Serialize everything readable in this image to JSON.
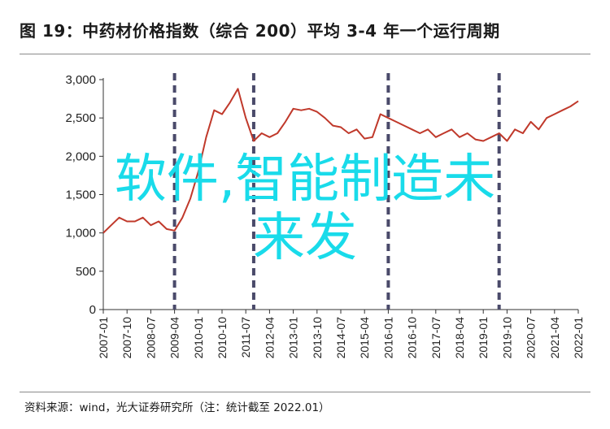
{
  "title": "图 19：中药材价格指数（综合 200）平均 3-4 年一个运行周期",
  "source": "资料来源：wind，光大证券研究所（注：统计截至 2022.01）",
  "overlay": {
    "line1": "软件,智能制造未",
    "line2": "来发"
  },
  "colors": {
    "line": "#c0392b",
    "dash": "#4a4a6a",
    "axis": "#333333",
    "overlay": "#19dbea"
  },
  "chart_data": {
    "type": "line",
    "title": "图 19：中药材价格指数（综合 200）平均 3-4 年一个运行周期",
    "xlabel": "",
    "ylabel": "",
    "ylim": [
      0,
      3000
    ],
    "yticks": [
      0,
      500,
      1000,
      1500,
      2000,
      2500,
      3000
    ],
    "ytick_labels": [
      "0",
      "500",
      "1,000",
      "1,500",
      "2,000",
      "2,500",
      "3,000"
    ],
    "xticks": [
      "2007-01",
      "2007-10",
      "2008-07",
      "2009-04",
      "2010-01",
      "2010-10",
      "2011-07",
      "2012-04",
      "2013-01",
      "2013-10",
      "2014-07",
      "2015-04",
      "2016-01",
      "2016-10",
      "2017-07",
      "2018-04",
      "2019-01",
      "2019-10",
      "2020-07",
      "2021-04",
      "2022-01"
    ],
    "grid": false,
    "series": [
      {
        "name": "",
        "x": [
          "2007-01",
          "2007-04",
          "2007-07",
          "2007-10",
          "2008-01",
          "2008-04",
          "2008-07",
          "2008-10",
          "2009-01",
          "2009-04",
          "2009-07",
          "2009-10",
          "2010-01",
          "2010-04",
          "2010-07",
          "2010-10",
          "2011-01",
          "2011-04",
          "2011-07",
          "2011-10",
          "2012-01",
          "2012-04",
          "2012-07",
          "2012-10",
          "2013-01",
          "2013-04",
          "2013-07",
          "2013-10",
          "2014-01",
          "2014-04",
          "2014-07",
          "2014-10",
          "2015-01",
          "2015-04",
          "2015-07",
          "2015-10",
          "2016-01",
          "2016-04",
          "2016-07",
          "2016-10",
          "2017-01",
          "2017-04",
          "2017-07",
          "2017-10",
          "2018-01",
          "2018-04",
          "2018-07",
          "2018-10",
          "2019-01",
          "2019-04",
          "2019-07",
          "2019-10",
          "2020-01",
          "2020-04",
          "2020-07",
          "2020-10",
          "2021-01",
          "2021-04",
          "2021-07",
          "2021-10",
          "2022-01"
        ],
        "values": [
          1000,
          1100,
          1200,
          1150,
          1150,
          1200,
          1100,
          1150,
          1050,
          1030,
          1200,
          1450,
          1800,
          2250,
          2600,
          2550,
          2700,
          2880,
          2500,
          2200,
          2300,
          2250,
          2300,
          2450,
          2620,
          2600,
          2620,
          2580,
          2500,
          2400,
          2380,
          2300,
          2350,
          2230,
          2250,
          2550,
          2500,
          2450,
          2400,
          2350,
          2300,
          2350,
          2250,
          2300,
          2350,
          2250,
          2300,
          2220,
          2200,
          2250,
          2300,
          2200,
          2350,
          2300,
          2450,
          2350,
          2500,
          2550,
          2600,
          2650,
          2720
        ]
      }
    ],
    "vertical_markers": [
      "2009-04",
      "2011-10",
      "2016-01",
      "2019-07"
    ]
  }
}
